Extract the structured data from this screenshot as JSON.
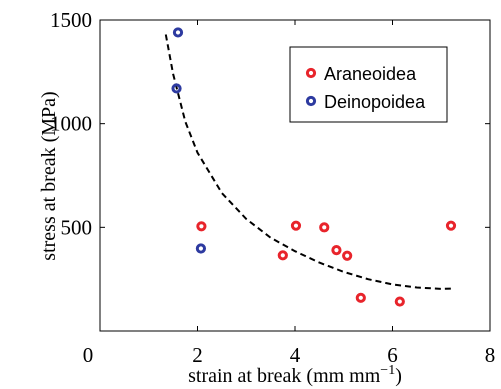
{
  "chart_data": {
    "type": "scatter",
    "xlabel": "strain at break (mm mm",
    "xlabel_sup": "−1",
    "xlabel_close": ")",
    "ylabel": "stress at break (MPa)",
    "xlim": [
      0,
      8
    ],
    "ylim": [
      0,
      1500
    ],
    "x_ticks": [
      0,
      2,
      4,
      6,
      8
    ],
    "y_ticks": [
      500,
      1000,
      1500
    ],
    "grid": false,
    "legend_position": "top-right",
    "series": [
      {
        "name": "Araneoidea",
        "color": "#e8242b",
        "points": [
          {
            "x": 2.08,
            "y": 505
          },
          {
            "x": 3.75,
            "y": 365
          },
          {
            "x": 4.02,
            "y": 508
          },
          {
            "x": 4.6,
            "y": 500
          },
          {
            "x": 4.85,
            "y": 390
          },
          {
            "x": 5.07,
            "y": 363
          },
          {
            "x": 5.35,
            "y": 160
          },
          {
            "x": 6.15,
            "y": 142
          },
          {
            "x": 7.2,
            "y": 508
          }
        ]
      },
      {
        "name": "Deinopoidea",
        "color": "#2d3aa0",
        "points": [
          {
            "x": 1.6,
            "y": 1440
          },
          {
            "x": 1.57,
            "y": 1170
          },
          {
            "x": 2.07,
            "y": 398
          }
        ]
      }
    ],
    "fit_curve": {
      "style": "dashed",
      "color": "#000000",
      "points": [
        {
          "x": 1.35,
          "y": 1430
        },
        {
          "x": 1.5,
          "y": 1240
        },
        {
          "x": 1.75,
          "y": 1010
        },
        {
          "x": 2.0,
          "y": 860
        },
        {
          "x": 2.5,
          "y": 665
        },
        {
          "x": 3.0,
          "y": 540
        },
        {
          "x": 3.5,
          "y": 450
        },
        {
          "x": 4.0,
          "y": 385
        },
        {
          "x": 4.5,
          "y": 330
        },
        {
          "x": 5.0,
          "y": 285
        },
        {
          "x": 5.5,
          "y": 250
        },
        {
          "x": 6.0,
          "y": 225
        },
        {
          "x": 6.5,
          "y": 210
        },
        {
          "x": 7.0,
          "y": 203
        },
        {
          "x": 7.25,
          "y": 205
        }
      ]
    }
  }
}
